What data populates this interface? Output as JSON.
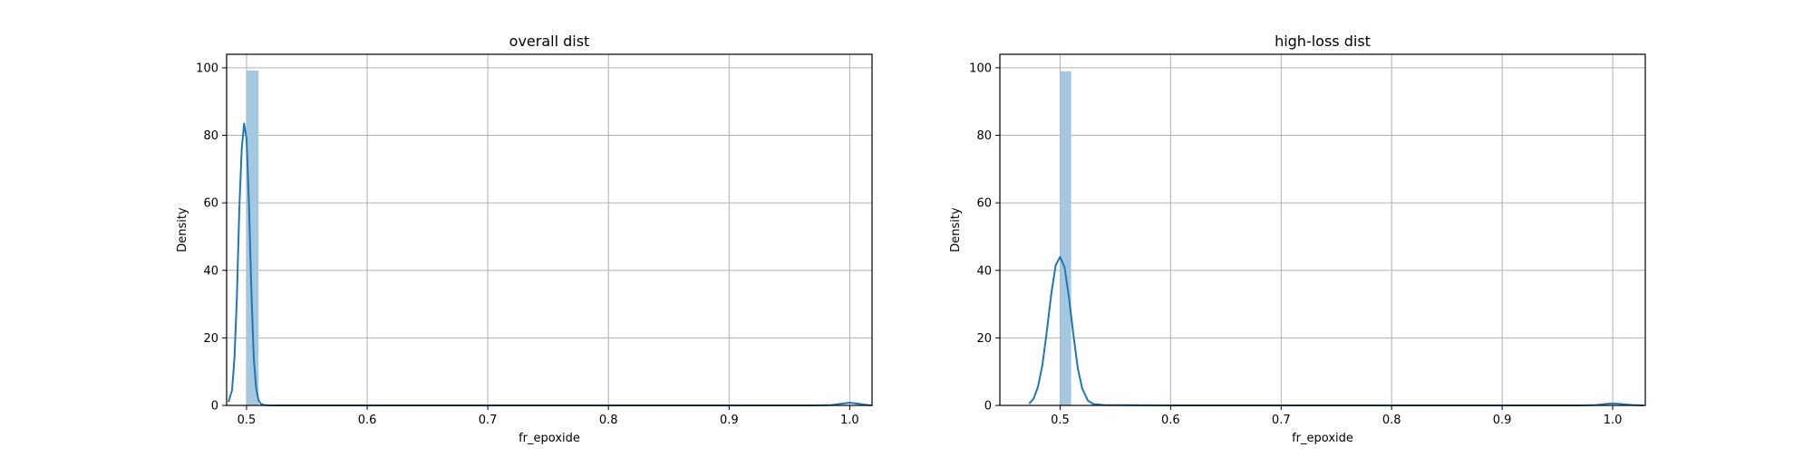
{
  "chart_data": [
    {
      "type": "histogram",
      "title": "overall dist",
      "xlabel": "fr_epoxide",
      "ylabel": "Density",
      "xlim": [
        0.4835,
        1.0185
      ],
      "ylim": [
        0,
        104
      ],
      "xticks": [
        0.5,
        0.6,
        0.7,
        0.8,
        0.9,
        1.0
      ],
      "xtick_labels": [
        "0.5",
        "0.6",
        "0.7",
        "0.8",
        "0.9",
        "1.0"
      ],
      "yticks": [
        0,
        20,
        40,
        60,
        80,
        100
      ],
      "ytick_labels": [
        "0",
        "20",
        "40",
        "60",
        "80",
        "100"
      ],
      "grid": true,
      "bars": [
        {
          "x0": 0.5,
          "x1": 0.51,
          "height": 99.2
        }
      ],
      "kde": {
        "x": [
          0.485,
          0.488,
          0.49,
          0.492,
          0.494,
          0.496,
          0.498,
          0.5,
          0.502,
          0.504,
          0.506,
          0.508,
          0.51,
          0.512,
          0.515,
          0.52,
          0.55,
          0.6,
          0.7,
          0.8,
          0.9,
          0.97,
          0.985,
          0.993,
          1.0,
          1.007,
          1.015,
          1.018
        ],
        "y": [
          1.0,
          4.5,
          14.0,
          32.0,
          58.0,
          76.0,
          83.5,
          79.0,
          60.0,
          34.0,
          14.0,
          5.0,
          1.5,
          0.4,
          0.1,
          0.0,
          0.0,
          0.0,
          0.0,
          0.0,
          0.0,
          0.0,
          0.1,
          0.5,
          0.8,
          0.5,
          0.1,
          0.0
        ]
      }
    },
    {
      "type": "histogram",
      "title": "high-loss dist",
      "xlabel": "fr_epoxide",
      "ylabel": "Density",
      "xlim": [
        0.4455,
        1.0295
      ],
      "ylim": [
        0,
        104
      ],
      "xticks": [
        0.5,
        0.6,
        0.7,
        0.8,
        0.9,
        1.0
      ],
      "xtick_labels": [
        "0.5",
        "0.6",
        "0.7",
        "0.8",
        "0.9",
        "1.0"
      ],
      "yticks": [
        0,
        20,
        40,
        60,
        80,
        100
      ],
      "ytick_labels": [
        "0",
        "20",
        "40",
        "60",
        "80",
        "100"
      ],
      "grid": true,
      "bars": [
        {
          "x0": 0.5,
          "x1": 0.51,
          "height": 99.0
        }
      ],
      "kde": {
        "x": [
          0.472,
          0.476,
          0.48,
          0.484,
          0.488,
          0.492,
          0.496,
          0.5,
          0.504,
          0.508,
          0.512,
          0.516,
          0.52,
          0.525,
          0.53,
          0.54,
          0.6,
          0.7,
          0.8,
          0.9,
          0.97,
          0.985,
          0.993,
          1.0,
          1.008,
          1.018,
          1.028
        ],
        "y": [
          0.5,
          2.0,
          5.5,
          12.0,
          22.0,
          33.0,
          41.5,
          44.0,
          41.0,
          32.0,
          21.0,
          11.0,
          5.0,
          1.5,
          0.4,
          0.1,
          0.0,
          0.0,
          0.0,
          0.0,
          0.0,
          0.1,
          0.4,
          0.6,
          0.4,
          0.1,
          0.0
        ]
      }
    }
  ],
  "colors": {
    "bar_fill": "#a5c8e1",
    "kde_line": "#1f77b4",
    "grid": "#b0b0b0",
    "axes": "#000000"
  }
}
